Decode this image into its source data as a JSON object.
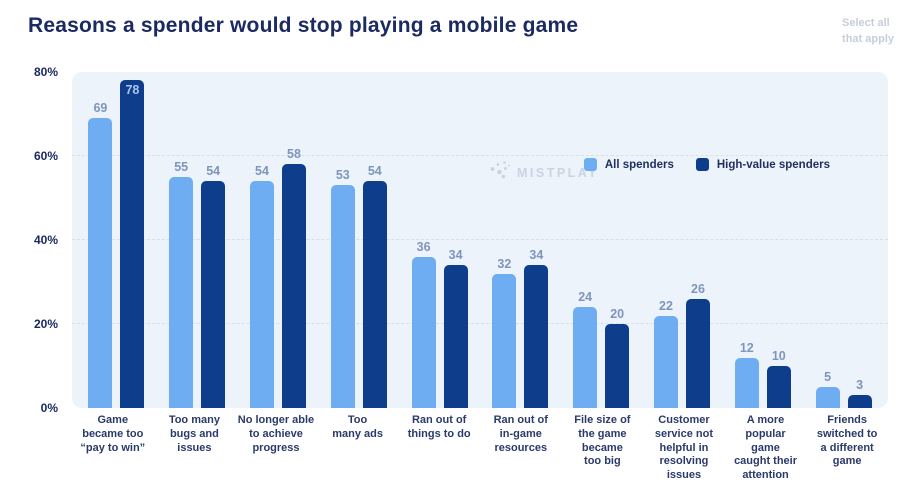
{
  "header": {
    "title": "Reasons a spender would stop playing a mobile game",
    "note": "Select all\nthat apply"
  },
  "watermark": {
    "brand": "MISTPLAY"
  },
  "colors": {
    "all_spenders": "#6FADF3",
    "high_value_spenders": "#0E3D8C",
    "plot_background": "#EDF3FB",
    "gridline": "#D9DFE9",
    "title_text": "#1B2A63",
    "value_label": "#7E95BD",
    "value_label_inside_bar": "#A8C6F0"
  },
  "chart_data": {
    "type": "bar",
    "title": "Reasons a spender would stop playing a mobile game",
    "categories": [
      "Game\nbecame too\n“pay to win”",
      "Too many\nbugs and\nissues",
      "No longer able\nto achieve\nprogress",
      "Too\nmany ads",
      "Ran out of\nthings to do",
      "Ran out of\nin-game\nresources",
      "File size of\nthe game\nbecame\ntoo big",
      "Customer\nservice not\nhelpful in\nresolving\nissues",
      "A more\npopular\ngame\ncaught their\nattention",
      "Friends\nswitched to\na different\ngame"
    ],
    "series": [
      {
        "name": "All spenders",
        "color": "#6FADF3",
        "values": [
          69,
          55,
          54,
          53,
          36,
          32,
          24,
          22,
          12,
          5
        ]
      },
      {
        "name": "High-value spenders",
        "color": "#0E3D8C",
        "values": [
          78,
          54,
          58,
          54,
          34,
          34,
          20,
          26,
          10,
          3
        ]
      }
    ],
    "xlabel": "",
    "ylabel": "",
    "ylim": [
      0,
      80
    ],
    "yticks": [
      "0%",
      "20%",
      "40%",
      "60%",
      "80%"
    ],
    "ytick_values": [
      0,
      20,
      40,
      60,
      80
    ],
    "gridline_values": [
      20,
      40,
      60
    ],
    "grid": "horizontal dashed",
    "legend_position": "top-right",
    "value_labels": true
  }
}
